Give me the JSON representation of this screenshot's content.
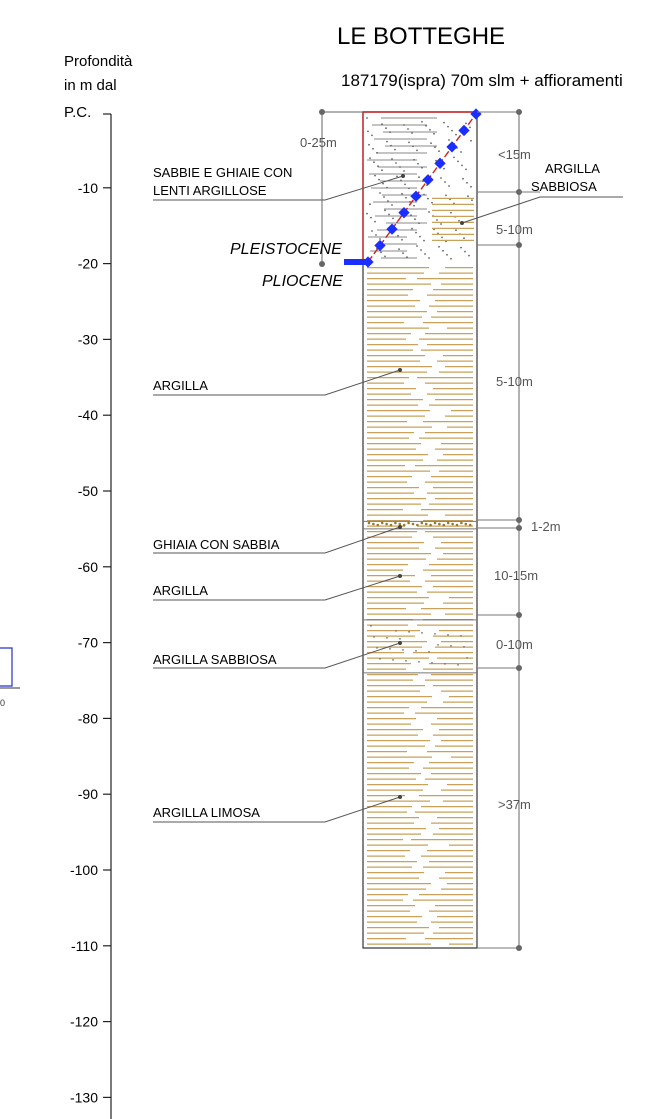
{
  "title": "LE BOTTEGHE",
  "subtitle": "187179(ispra) 70m slm + affioramenti",
  "y_axis": {
    "label_lines": [
      "Profondità",
      "in m dal",
      "P.C."
    ],
    "ticks": [
      -10,
      -20,
      -30,
      -40,
      -50,
      -60,
      -70,
      -80,
      -90,
      -100,
      -110,
      -120,
      -130
    ]
  },
  "colors": {
    "clay": "#c9a15a",
    "gravel_dots": "#9a7a2a",
    "contact_line": "#cc2222",
    "contact_markers": "#1a2fff",
    "log_border": "#333333"
  },
  "layers": [
    {
      "name": "SABBIE E GHIAIE CON LENTI ARGILLOSE",
      "label_lines": [
        "SABBIE E GHIAIE CON",
        "LENTI ARGILLOSE"
      ],
      "top": 0,
      "bottom": -20,
      "pattern": "sand-gravel"
    },
    {
      "name": "ARGILLA SABBIOSA",
      "label_lines": [
        "ARGILLA",
        "SABBIOSA"
      ],
      "top": -11,
      "bottom": -17,
      "pattern": "sandy-clay"
    },
    {
      "name": "ARGILLA",
      "label_lines": [
        "ARGILLA"
      ],
      "top": -20,
      "bottom": -54,
      "pattern": "clay"
    },
    {
      "name": "GHIAIA CON SABBIA",
      "label_lines": [
        "GHIAIA CON SABBIA"
      ],
      "top": -54,
      "bottom": -55,
      "pattern": "gravel"
    },
    {
      "name": "ARGILLA",
      "label_lines": [
        "ARGILLA"
      ],
      "top": -55,
      "bottom": -67,
      "pattern": "clay"
    },
    {
      "name": "ARGILLA SABBIOSA",
      "label_lines": [
        "ARGILLA SABBIOSA"
      ],
      "top": -67,
      "bottom": -74,
      "pattern": "sandy-clay"
    },
    {
      "name": "ARGILLA LIMOSA",
      "label_lines": [
        "ARGILLA LIMOSA"
      ],
      "top": -74,
      "bottom": -111,
      "pattern": "clay"
    }
  ],
  "thickness_labels": [
    "0-25m",
    "<15m",
    "5-10m",
    "5-10m",
    "1-2m",
    "10-15m",
    "0-10m",
    ">37m"
  ],
  "eras": {
    "upper": "PLEISTOCENE",
    "lower": "PLIOCENE"
  }
}
